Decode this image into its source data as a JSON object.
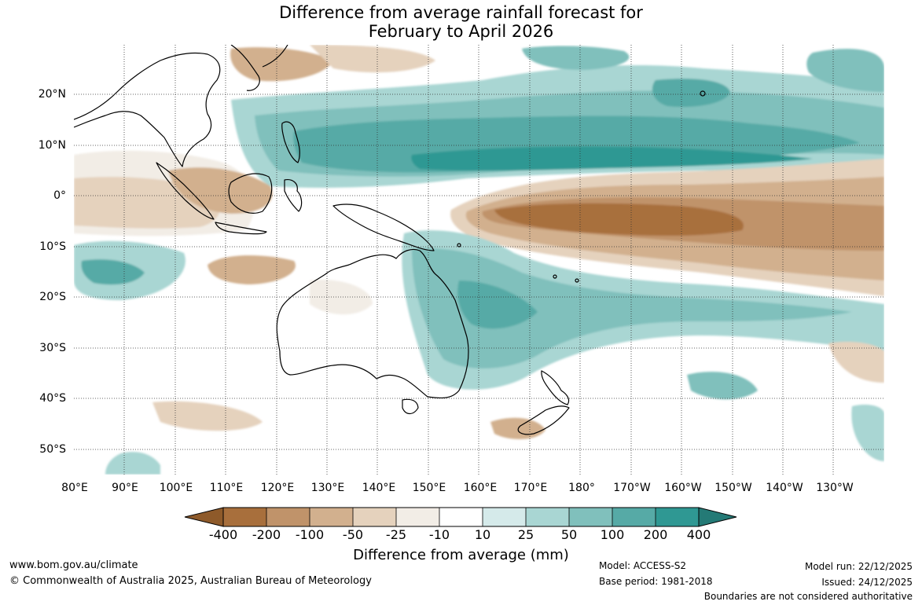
{
  "title_line1": "Difference from average rainfall forecast for",
  "title_line2": "February to April 2026",
  "map": {
    "projection": "equirectangular",
    "lon_range_deg_east": [
      80,
      242
    ],
    "lat_range_deg": [
      -55,
      30
    ],
    "lat_labels": [
      "20°N",
      "10°N",
      "0°",
      "10°S",
      "20°S",
      "30°S",
      "40°S",
      "50°S"
    ],
    "lon_labels": [
      "80°E",
      "90°E",
      "100°E",
      "110°E",
      "120°E",
      "130°E",
      "140°E",
      "150°E",
      "160°E",
      "170°E",
      "180°",
      "170°W",
      "160°W",
      "150°W",
      "140°W",
      "130°W"
    ]
  },
  "colorbar": {
    "title": "Difference from average (mm)",
    "ticks": [
      "-400",
      "-200",
      "-100",
      "-50",
      "-25",
      "-10",
      "10",
      "25",
      "50",
      "100",
      "200",
      "400"
    ],
    "colors": {
      "lt_-400": "#8e5a2a",
      "-400_-200": "#a86f3c",
      "-200_-100": "#c0936a",
      "-100_-50": "#d2b08e",
      "-50_-25": "#e5d2bd",
      "-25_-10": "#f2ede6",
      "-10_10": "#ffffff",
      "10_25": "#d5eaea",
      "25_50": "#a9d6d3",
      "50_100": "#80c0bc",
      "100_200": "#56aaa6",
      "200_400": "#2f9893",
      "gt_400": "#247a76"
    }
  },
  "footer": {
    "website": "www.bom.gov.au/climate",
    "copyright": "© Commonwealth of Australia 2025, Australian Bureau of Meteorology",
    "model": "Model: ACCESS-S2",
    "base_period": "Base period: 1981-2018",
    "model_run": "Model run: 22/12/2025",
    "issued": "Issued: 24/12/2025",
    "disclaimer": "Boundaries are not considered authoritative"
  }
}
